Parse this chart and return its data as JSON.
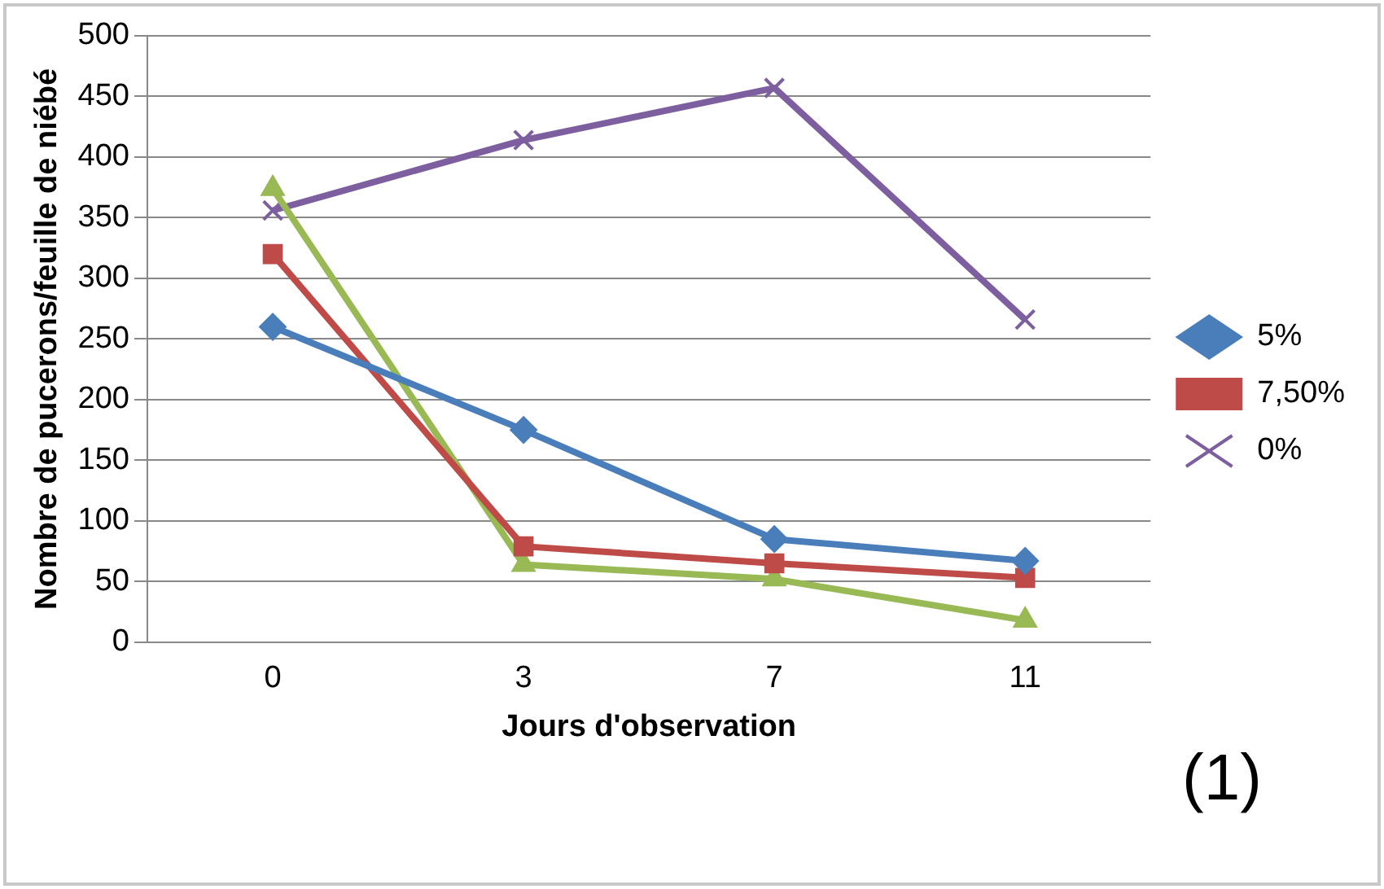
{
  "chart_data": {
    "type": "line",
    "xlabel": "Jours d'observation",
    "ylabel": "Nombre de pucerons/feuille de niébé",
    "categories": [
      "0",
      "3",
      "7",
      "11"
    ],
    "series": [
      {
        "name": "5%",
        "color": "#4a7ebb",
        "marker": "diamond",
        "values": [
          260,
          175,
          85,
          67
        ]
      },
      {
        "name": "7,50%",
        "color": "#be4b48",
        "marker": "square",
        "values": [
          320,
          79,
          65,
          53
        ]
      },
      {
        "color": "#98b954",
        "marker": "triangle",
        "values": [
          374,
          64,
          52,
          18
        ]
      },
      {
        "name": "0%",
        "color": "#7d5fa0",
        "marker": "cross",
        "values": [
          356,
          414,
          457,
          266
        ]
      }
    ],
    "ylim": [
      0,
      500
    ],
    "yticks": [
      0,
      50,
      100,
      150,
      200,
      250,
      300,
      350,
      400,
      450,
      500
    ],
    "grid": "y",
    "legend": "right",
    "annotations": [
      "(1)"
    ]
  }
}
